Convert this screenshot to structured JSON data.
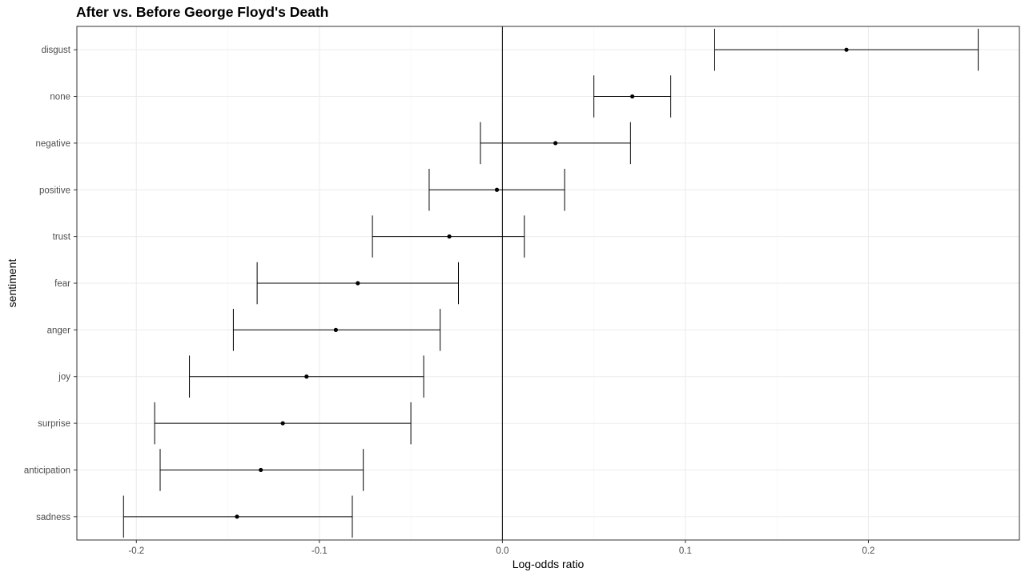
{
  "chart_data": {
    "type": "errorbar",
    "title": "After vs. Before George Floyd's Death",
    "xlabel": "Log-odds ratio",
    "ylabel": "sentiment",
    "xlim": [
      -0.2325,
      0.2825
    ],
    "x_ticks": [
      -0.2,
      -0.1,
      0.0,
      0.1,
      0.2
    ],
    "x_tick_labels": [
      "-0.2",
      "-0.1",
      "0.0",
      "0.1",
      "0.2"
    ],
    "reference_line_x": 0.0,
    "grid": true,
    "categories": [
      "disgust",
      "none",
      "negative",
      "positive",
      "trust",
      "fear",
      "anger",
      "joy",
      "surprise",
      "anticipation",
      "sadness"
    ],
    "estimates": [
      0.188,
      0.071,
      0.029,
      -0.003,
      -0.029,
      -0.079,
      -0.091,
      -0.107,
      -0.12,
      -0.132,
      -0.145
    ],
    "lower": [
      0.116,
      0.05,
      -0.012,
      -0.04,
      -0.071,
      -0.134,
      -0.147,
      -0.171,
      -0.19,
      -0.187,
      -0.207
    ],
    "upper": [
      0.26,
      0.092,
      0.07,
      0.034,
      0.012,
      -0.024,
      -0.034,
      -0.043,
      -0.05,
      -0.076,
      -0.082
    ]
  },
  "colors": {
    "panel_border": "#333333",
    "grid_major": "#ebebeb",
    "grid_minor": "#f5f5f5",
    "marks": "#000000",
    "tick_text": "#4d4d4d"
  }
}
